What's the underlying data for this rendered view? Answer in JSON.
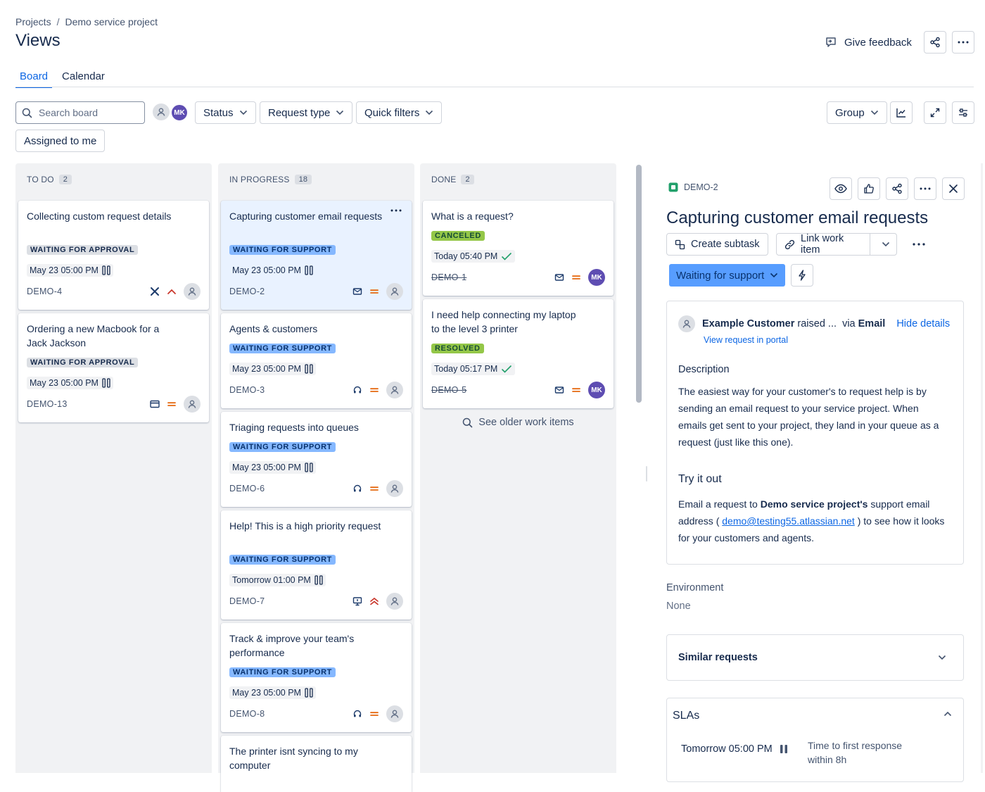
{
  "breadcrumb": {
    "projects": "Projects",
    "separator": "/",
    "project": "Demo service project"
  },
  "page_title": "Views",
  "header": {
    "feedback_label": "Give feedback"
  },
  "tabs": [
    {
      "label": "Board",
      "active": true
    },
    {
      "label": "Calendar",
      "active": false
    }
  ],
  "toolbar": {
    "search_placeholder": "Search board",
    "avatar_initials": "MK",
    "status_label": "Status",
    "request_type_label": "Request type",
    "quick_filters_label": "Quick filters",
    "assigned_label": "Assigned to me",
    "group_label": "Group"
  },
  "columns": {
    "todo": {
      "title": "TO DO",
      "count": "2",
      "cards": [
        {
          "title": "Collecting custom request details",
          "status": "WAITING FOR APPROVAL",
          "due": "May 23 05:00 PM",
          "key": "DEMO-4",
          "type_icon": "cross-icon",
          "priority": "medium-high"
        },
        {
          "title": "Ordering a new Macbook for a Jack Jackson",
          "status": "WAITING FOR APPROVAL",
          "due": "May 23 05:00 PM",
          "key": "DEMO-13",
          "type_icon": "credit-card-icon",
          "priority": "medium"
        }
      ]
    },
    "in_progress": {
      "title": "IN PROGRESS",
      "count": "18",
      "cards": [
        {
          "title": "Capturing customer email requests",
          "status": "WAITING FOR SUPPORT",
          "due": "May 23 05:00 PM",
          "key": "DEMO-2",
          "type_icon": "mail-icon",
          "priority": "medium"
        },
        {
          "title": "Agents & customers",
          "status": "WAITING FOR SUPPORT",
          "due": "May 23 05:00 PM",
          "key": "DEMO-3",
          "type_icon": "headset-icon",
          "priority": "medium"
        },
        {
          "title": "Triaging requests into queues",
          "status": "WAITING FOR SUPPORT",
          "due": "May 23 05:00 PM",
          "key": "DEMO-6",
          "type_icon": "headset-icon",
          "priority": "medium"
        },
        {
          "title": "Help! This is a high priority request",
          "status": "WAITING FOR SUPPORT",
          "due": "Tomorrow 01:00 PM",
          "key": "DEMO-7",
          "type_icon": "monitor-icon",
          "priority": "high"
        },
        {
          "title": "Track & improve your team's performance",
          "status": "WAITING FOR SUPPORT",
          "due": "May 23 05:00 PM",
          "key": "DEMO-8",
          "type_icon": "headset-icon",
          "priority": "medium"
        },
        {
          "title": "The printer isnt syncing to my computer"
        }
      ]
    },
    "done": {
      "title": "DONE",
      "count": "2",
      "cards": [
        {
          "title": "What is a request?",
          "status": "CANCELED",
          "due": "Today 05:40 PM",
          "key": "DEMO-1",
          "assignee": "MK"
        },
        {
          "title": "I need help connecting my laptop to the level 3 printer",
          "status": "RESOLVED",
          "due": "Today 05:17 PM",
          "key": "DEMO-5",
          "assignee": "MK"
        }
      ],
      "older_label": "See older work items"
    }
  },
  "panel": {
    "key": "DEMO-2",
    "title": "Capturing customer email requests",
    "create_subtask": "Create subtask",
    "link_work_item": "Link work item",
    "status": "Waiting for support",
    "raiser_name": "Example Customer",
    "raiser_suffix": "raised ...",
    "via": "via",
    "channel": "Email",
    "hide_details": "Hide details",
    "view_portal": "View request in portal",
    "description_label": "Description",
    "description": "The easiest way for your customer's to request help is by sending an email request to your service project. When emails get sent to your project, they land in your queue as a request (just like this one).",
    "try_heading": "Try it out",
    "try_pre": "Email a request to",
    "try_bold": "Demo service project's",
    "try_mid": "support email address (",
    "try_email": "demo@testing55.atlassian.net",
    "try_post": ") to see how it looks for your customers and agents.",
    "environment_label": "Environment",
    "environment_value": "None",
    "similar_label": "Similar requests",
    "sla_label": "SLAs",
    "sla_time": "Tomorrow 05:00 PM",
    "sla_desc": "Time to first response within 8h"
  },
  "colors": {
    "accent": "#0c66e4",
    "status_blue": "#579dff",
    "priority_orange": "#e56910",
    "priority_red": "#c9372c",
    "lozenge_blue": "#85b8ff",
    "lozenge_green": "#94c748",
    "column_bg": "#f1f2f4",
    "selected_card": "#e9f2ff"
  }
}
